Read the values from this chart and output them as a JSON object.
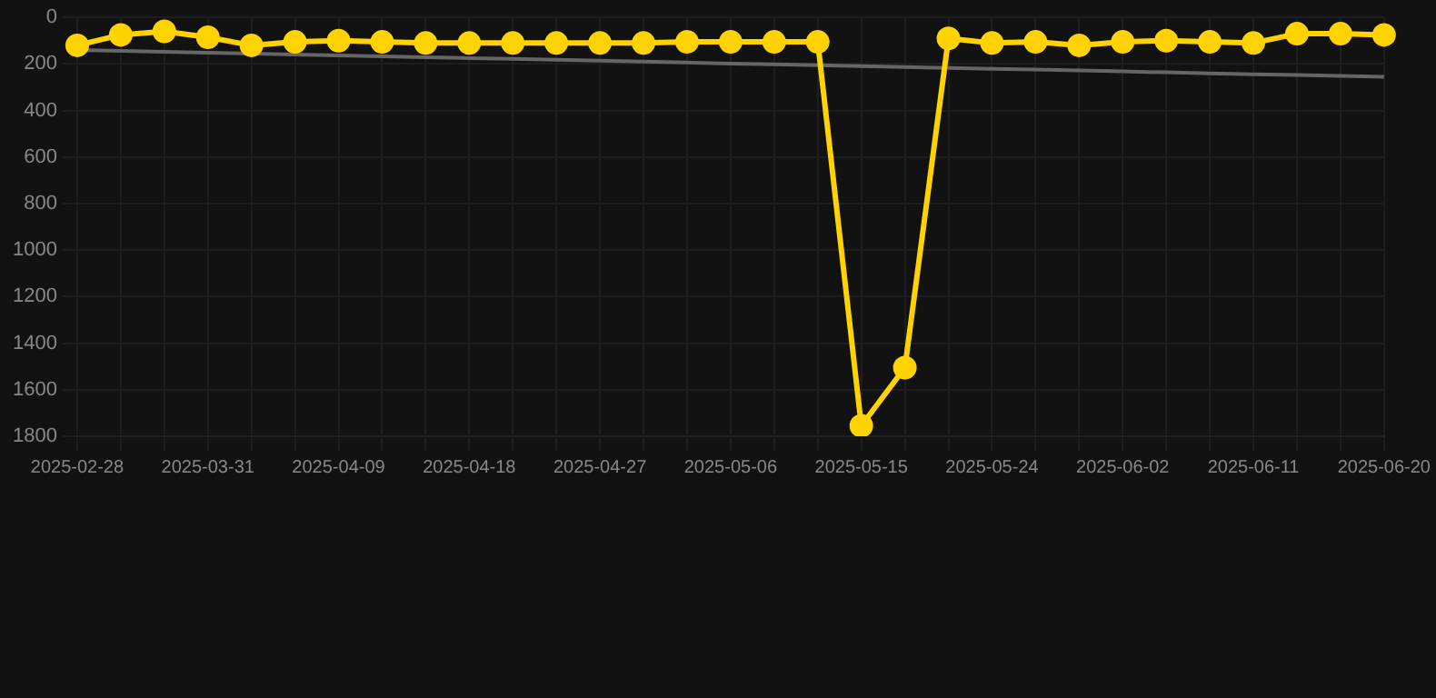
{
  "chart_data": {
    "type": "line",
    "categories": [
      "2025-02-28",
      null,
      null,
      "2025-03-31",
      null,
      null,
      "2025-04-09",
      null,
      null,
      "2025-04-18",
      null,
      null,
      "2025-04-27",
      null,
      null,
      "2025-05-06",
      null,
      null,
      "2025-05-15",
      null,
      null,
      "2025-05-24",
      null,
      null,
      "2025-06-02",
      null,
      null,
      "2025-06-11",
      null,
      null,
      "2025-06-20"
    ],
    "series": [
      {
        "color": "#ffd200",
        "values": [
          120,
          75,
          60,
          85,
          120,
          105,
          100,
          105,
          110,
          110,
          110,
          110,
          110,
          110,
          105,
          105,
          105,
          105,
          1755,
          1505,
          90,
          110,
          105,
          120,
          105,
          100,
          105,
          110,
          70,
          70,
          75
        ]
      },
      {
        "type": "line",
        "color": "#666666",
        "marker": "none",
        "values": [
          140,
          144,
          148,
          152,
          155,
          159,
          163,
          167,
          171,
          175,
          178,
          182,
          186,
          190,
          194,
          198,
          201,
          205,
          209,
          213,
          217,
          221,
          224,
          228,
          232,
          236,
          240,
          244,
          247,
          251,
          255
        ]
      }
    ],
    "ylim": [
      1800,
      0
    ],
    "yticks": [
      0,
      200,
      400,
      600,
      800,
      1000,
      1200,
      1400,
      1600,
      1800
    ],
    "grid": true,
    "marker": "circle",
    "line_style": "solid",
    "legend": false
  }
}
